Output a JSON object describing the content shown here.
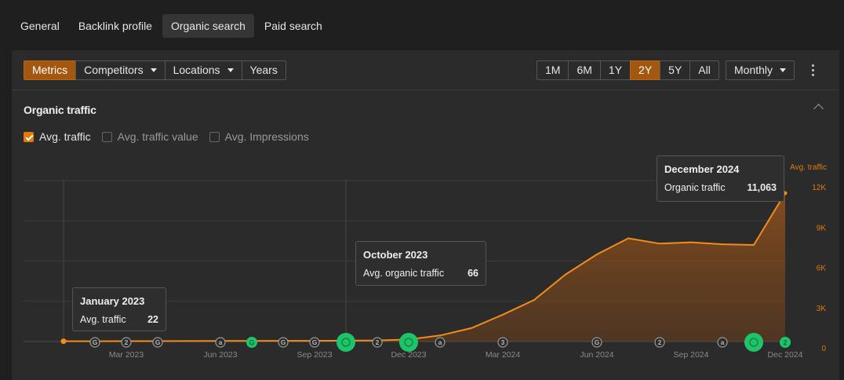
{
  "tabs": [
    "General",
    "Backlink profile",
    "Organic search",
    "Paid search"
  ],
  "active_tab": "Organic search",
  "toolbar": {
    "metrics_label": "Metrics",
    "competitors_label": "Competitors",
    "locations_label": "Locations",
    "years_label": "Years",
    "ranges": [
      "1M",
      "6M",
      "1Y",
      "2Y",
      "5Y",
      "All"
    ],
    "active_range": "2Y",
    "interval_label": "Monthly"
  },
  "section": {
    "title": "Organic traffic",
    "checkboxes": [
      {
        "label": "Avg. traffic",
        "checked": true
      },
      {
        "label": "Avg. traffic value",
        "checked": false
      },
      {
        "label": "Avg. Impressions",
        "checked": false
      }
    ]
  },
  "tooltips": {
    "jan": {
      "title": "January 2023",
      "label": "Avg. traffic",
      "value": "22"
    },
    "oct": {
      "title": "October 2023",
      "label": "Avg. organic traffic",
      "value": "66"
    },
    "dec": {
      "title": "December 2024",
      "label": "Organic traffic",
      "value": "11,063"
    }
  },
  "colors": {
    "accent": "#e07a0c",
    "annotation_green": "#1fc46a",
    "annotation_gray": "#9a9a9a"
  },
  "chart_data": {
    "type": "area",
    "title": "Organic traffic",
    "series_name": "Avg. traffic",
    "x_labels": [
      "Mar 2023",
      "Jun 2023",
      "Sep 2023",
      "Dec 2023",
      "Mar 2024",
      "Jun 2024",
      "Sep 2024",
      "Dec 2024"
    ],
    "x_label_months": [
      2,
      5,
      8,
      11,
      14,
      17,
      20,
      23
    ],
    "y_ticks": [
      0,
      3000,
      6000,
      9000,
      12000
    ],
    "y_tick_labels": [
      "0",
      "3K",
      "6K",
      "9K",
      "12K"
    ],
    "y_axis_label": "Avg. traffic",
    "ylim": [
      0,
      12000
    ],
    "months": [
      "Jan 2023",
      "Feb 2023",
      "Mar 2023",
      "Apr 2023",
      "May 2023",
      "Jun 2023",
      "Jul 2023",
      "Aug 2023",
      "Sep 2023",
      "Oct 2023",
      "Nov 2023",
      "Dec 2023",
      "Jan 2024",
      "Feb 2024",
      "Mar 2024",
      "Apr 2024",
      "May 2024",
      "Jun 2024",
      "Jul 2024",
      "Aug 2024",
      "Sep 2024",
      "Oct 2024",
      "Nov 2024",
      "Dec 2024"
    ],
    "values": [
      22,
      25,
      28,
      30,
      35,
      40,
      45,
      50,
      55,
      66,
      80,
      150,
      450,
      1000,
      2000,
      3100,
      5000,
      6500,
      7700,
      7300,
      7400,
      7250,
      7200,
      11063
    ],
    "annotations": [
      {
        "month": 1,
        "kind": "G",
        "color": "gray"
      },
      {
        "month": 2,
        "kind": "2",
        "color": "gray"
      },
      {
        "month": 3,
        "kind": "G",
        "color": "gray"
      },
      {
        "month": 5,
        "kind": "a",
        "color": "gray"
      },
      {
        "month": 6,
        "kind": "G",
        "color": "green-small"
      },
      {
        "month": 7,
        "kind": "G",
        "color": "gray"
      },
      {
        "month": 8,
        "kind": "G",
        "color": "gray"
      },
      {
        "month": 9,
        "kind": "G",
        "color": "green"
      },
      {
        "month": 10,
        "kind": "2",
        "color": "gray"
      },
      {
        "month": 11,
        "kind": "G",
        "color": "green"
      },
      {
        "month": 12,
        "kind": "a",
        "color": "gray"
      },
      {
        "month": 14,
        "kind": "3",
        "color": "gray"
      },
      {
        "month": 17,
        "kind": "G",
        "color": "gray"
      },
      {
        "month": 19,
        "kind": "2",
        "color": "gray"
      },
      {
        "month": 21,
        "kind": "a",
        "color": "gray"
      },
      {
        "month": 22,
        "kind": "G",
        "color": "green"
      },
      {
        "month": 23,
        "kind": "2",
        "color": "green-small"
      }
    ]
  }
}
